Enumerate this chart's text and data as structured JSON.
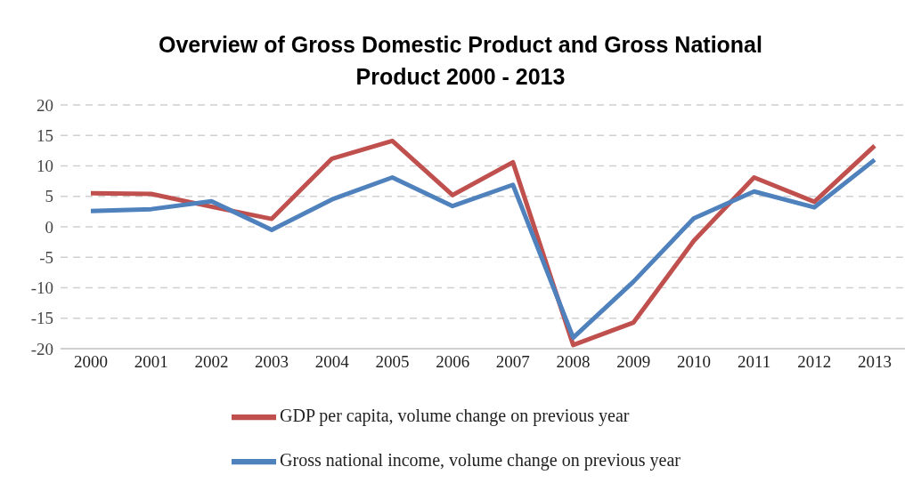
{
  "chart_data": {
    "type": "line",
    "title": "Overview of Gross Domestic Product and Gross National Product 2000 - 2013",
    "categories": [
      "2000",
      "2001",
      "2002",
      "2003",
      "2004",
      "2005",
      "2006",
      "2007",
      "2008",
      "2009",
      "2010",
      "2011",
      "2012",
      "2013"
    ],
    "series": [
      {
        "name": "GDP per capita, volume change on previous year",
        "color": "#c0504d",
        "values": [
          5.5,
          5.4,
          3.3,
          1.3,
          11.2,
          14.1,
          5.2,
          10.6,
          -19.4,
          -15.7,
          -2.3,
          8.1,
          4.1,
          13.3
        ]
      },
      {
        "name": "Gross national income, volume change on previous year",
        "color": "#4f81bd",
        "values": [
          2.6,
          2.9,
          4.2,
          -0.5,
          4.5,
          8.1,
          3.4,
          6.9,
          -18.2,
          -9.0,
          1.4,
          5.8,
          3.2,
          11.0
        ]
      }
    ],
    "ylim": [
      -20,
      20
    ],
    "yticks": [
      -20,
      -15,
      -10,
      -5,
      0,
      5,
      10,
      15,
      20
    ],
    "grid": "y",
    "legend": "bottom",
    "marker": "none",
    "line_style": "solid"
  }
}
